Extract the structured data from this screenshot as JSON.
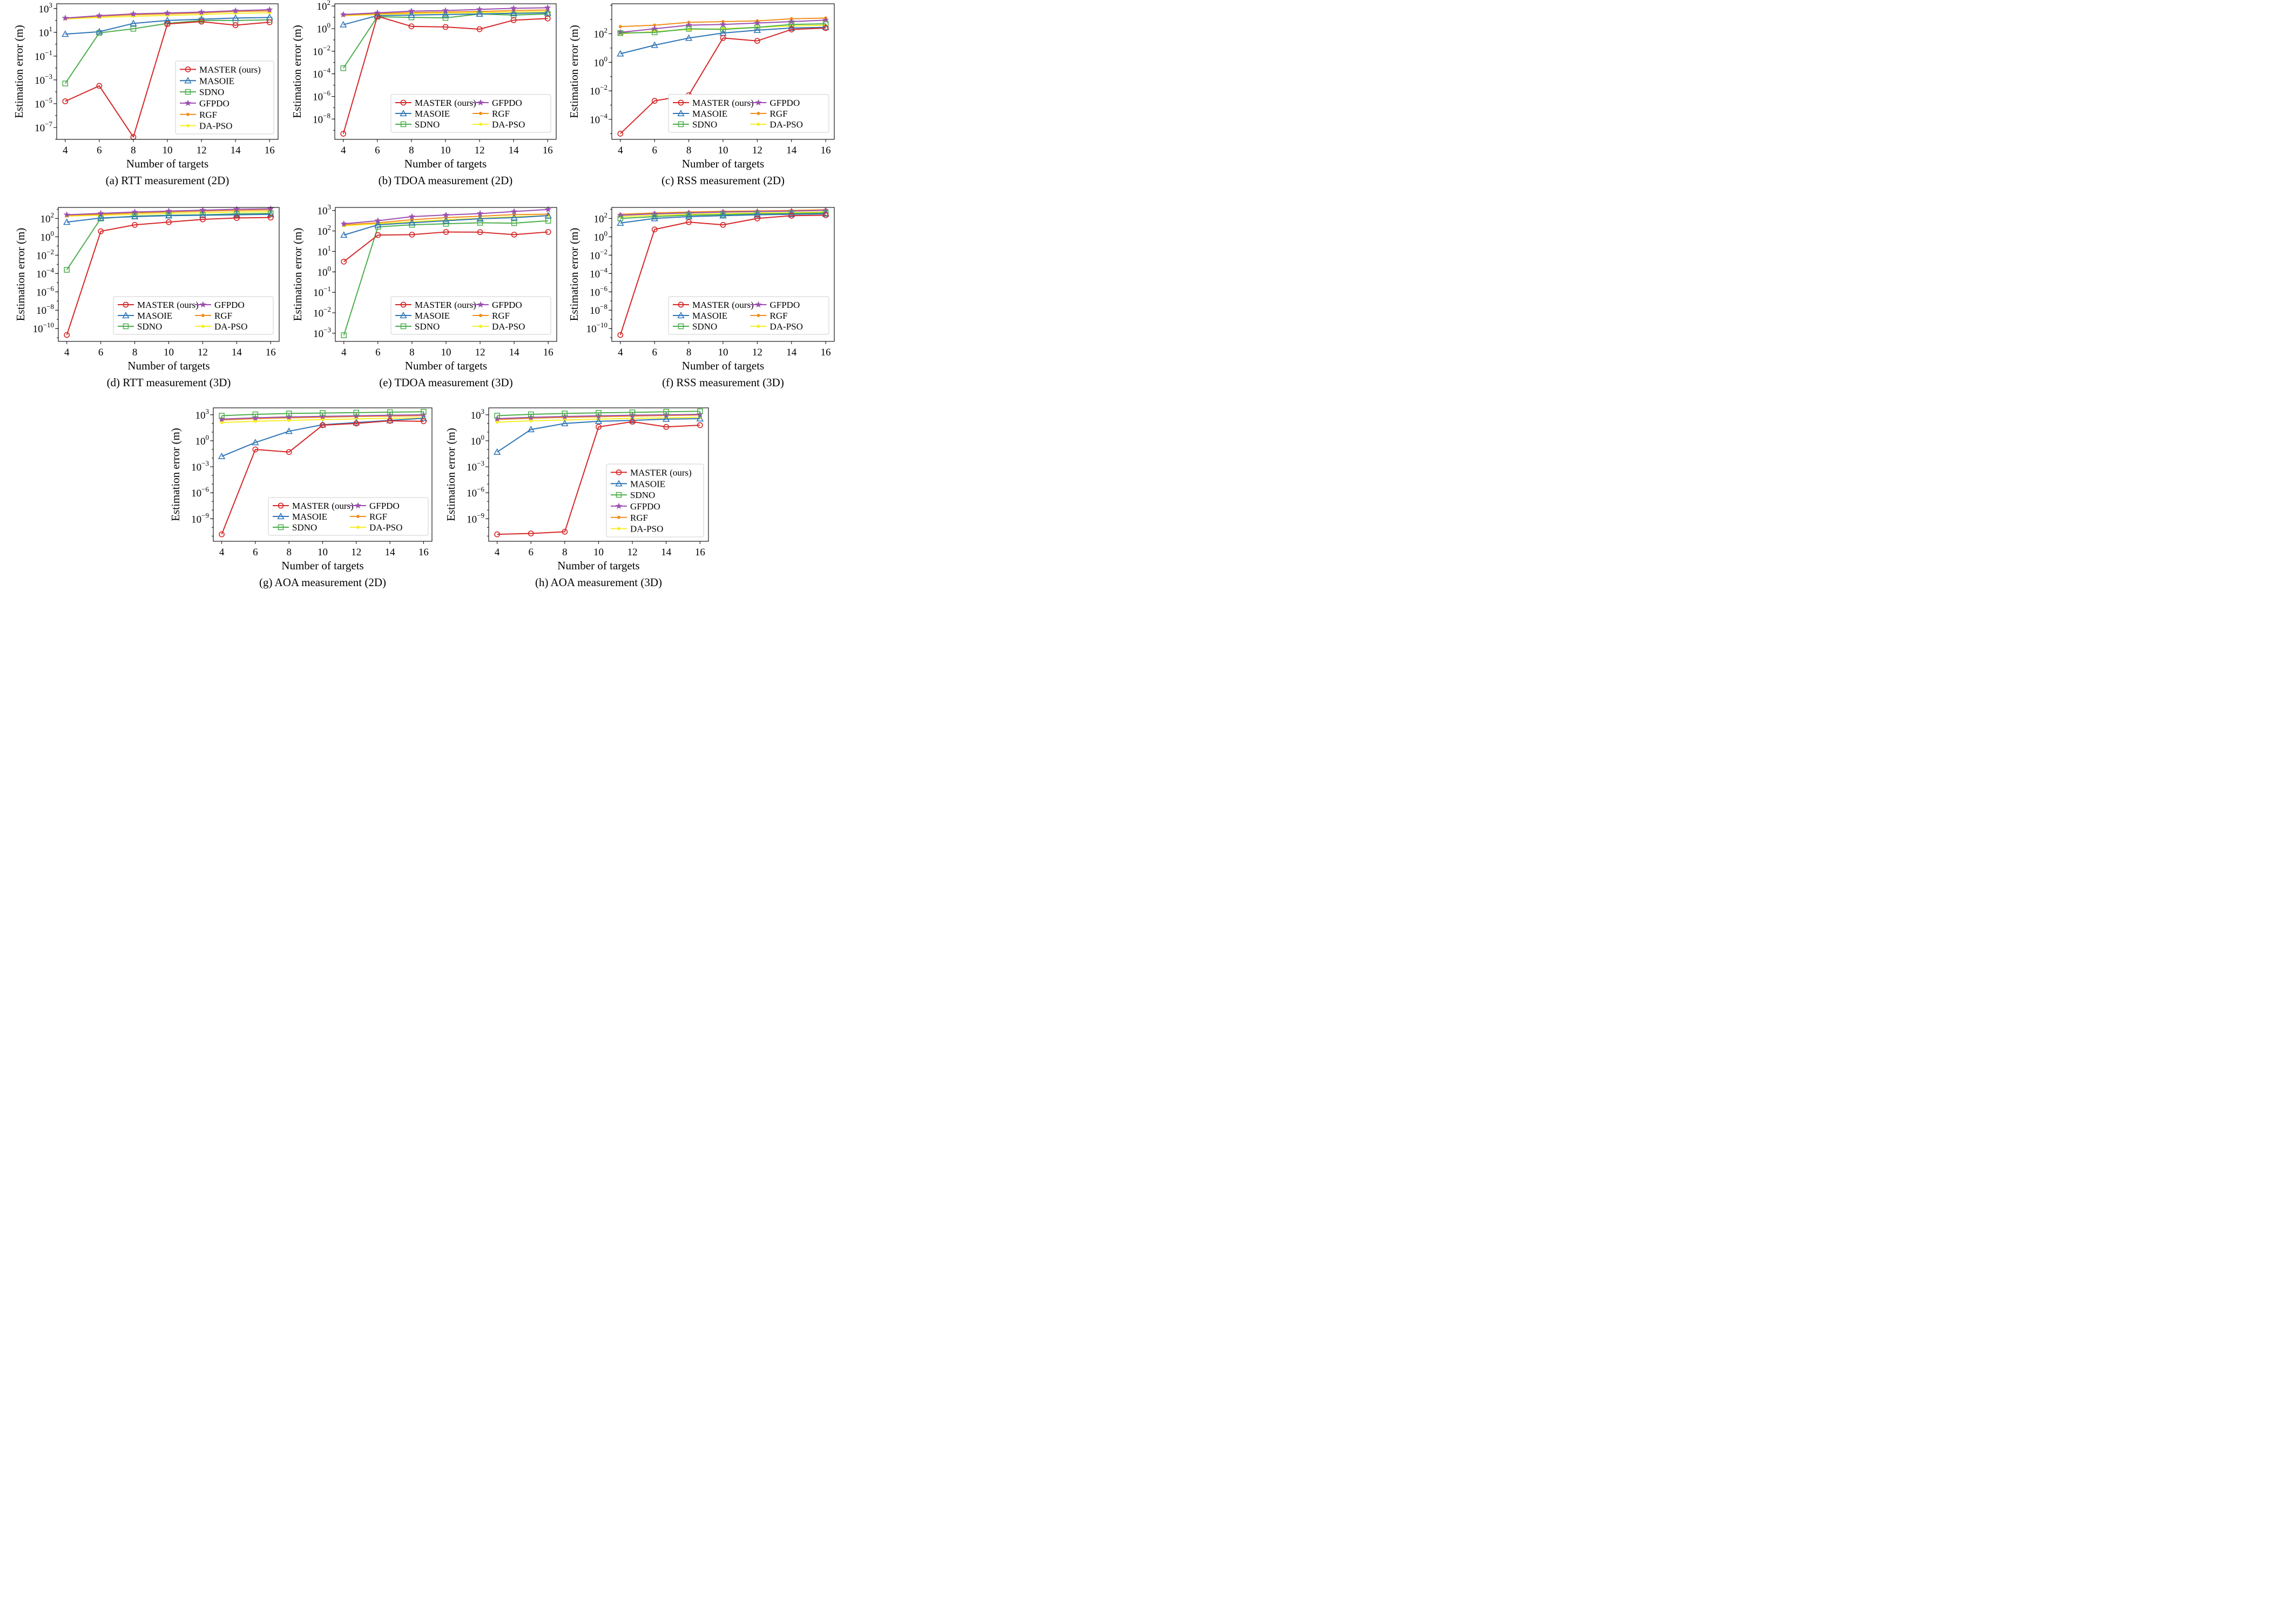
{
  "series_styles": [
    {
      "name": "MASTER (ours)",
      "color": "#d62728",
      "marker": "circle"
    },
    {
      "name": "MASOIE",
      "color": "#2e75b6",
      "marker": "triangle"
    },
    {
      "name": "SDNO",
      "color": "#4cae4c",
      "marker": "square"
    },
    {
      "name": "GFPDO",
      "color": "#9b4fb0",
      "marker": "star"
    },
    {
      "name": "RGF",
      "color": "#f28e1c",
      "marker": "dot"
    },
    {
      "name": "DA-PSO",
      "color": "#f5ef2a",
      "marker": "dot"
    }
  ],
  "chart_data": [
    {
      "type": "line",
      "caption": "(a) RTT measurement (2D)",
      "xlabel": "Number of targets",
      "ylabel": "Estimation error (m)",
      "yscale": "log",
      "ylim_exp": [
        -8,
        3.4
      ],
      "yticks_exp": [
        -7,
        -5,
        -3,
        -1,
        1,
        3
      ],
      "xlim": [
        3.5,
        16.5
      ],
      "xticks": [
        4,
        6,
        8,
        10,
        12,
        14,
        16
      ],
      "legend": {
        "placement": "lower-right",
        "columns": 1
      },
      "x": [
        4,
        6,
        8,
        10,
        12,
        14,
        16
      ],
      "series": [
        {
          "name": "MASTER (ours)",
          "values_log10": [
            -4.8,
            -3.5,
            -7.8,
            1.7,
            1.9,
            1.6,
            1.85
          ]
        },
        {
          "name": "MASOIE",
          "values_log10": [
            0.85,
            1.05,
            1.75,
            2.0,
            2.1,
            2.2,
            2.25
          ]
        },
        {
          "name": "SDNO",
          "values_log10": [
            -3.3,
            0.95,
            1.3,
            1.75,
            2.0,
            2.0,
            2.05
          ]
        },
        {
          "name": "GFPDO",
          "values_log10": [
            2.2,
            2.4,
            2.55,
            2.62,
            2.7,
            2.82,
            2.9
          ]
        },
        {
          "name": "RGF",
          "values_log10": [
            2.18,
            2.35,
            2.48,
            2.55,
            2.63,
            2.75,
            2.8
          ]
        },
        {
          "name": "DA-PSO",
          "values_log10": [
            2.12,
            2.25,
            2.35,
            2.42,
            2.5,
            2.6,
            2.65
          ]
        }
      ]
    },
    {
      "type": "line",
      "caption": "(b) TDOA measurement (2D)",
      "xlabel": "Number of targets",
      "ylabel": "Estimation error (m)",
      "yscale": "log",
      "ylim_exp": [
        -9.8,
        2.2
      ],
      "yticks_exp": [
        -8,
        -6,
        -4,
        -2,
        0,
        2
      ],
      "xlim": [
        3.5,
        16.5
      ],
      "xticks": [
        4,
        6,
        8,
        10,
        12,
        14,
        16
      ],
      "legend": {
        "placement": "lower-right",
        "columns": 2
      },
      "x": [
        4,
        6,
        8,
        10,
        12,
        14,
        16
      ],
      "series": [
        {
          "name": "MASTER (ours)",
          "values_log10": [
            -9.3,
            1.1,
            0.2,
            0.15,
            -0.05,
            0.75,
            0.9
          ]
        },
        {
          "name": "MASOIE",
          "values_log10": [
            0.35,
            1.15,
            1.2,
            1.25,
            1.3,
            1.35,
            1.4
          ]
        },
        {
          "name": "SDNO",
          "values_log10": [
            -3.5,
            1.05,
            1.0,
            0.95,
            1.3,
            1.2,
            1.3
          ]
        },
        {
          "name": "GFPDO",
          "values_log10": [
            1.25,
            1.4,
            1.55,
            1.6,
            1.7,
            1.8,
            1.85
          ]
        },
        {
          "name": "RGF",
          "values_log10": [
            1.2,
            1.32,
            1.42,
            1.47,
            1.52,
            1.6,
            1.65
          ]
        },
        {
          "name": "DA-PSO",
          "values_log10": [
            1.15,
            1.25,
            1.33,
            1.38,
            1.42,
            1.47,
            1.5
          ]
        }
      ]
    },
    {
      "type": "line",
      "caption": "(c) RSS measurement (2D)",
      "xlabel": "Number of targets",
      "ylabel": "Estimation error (m)",
      "yscale": "log",
      "ylim_exp": [
        -5.4,
        4.1
      ],
      "yticks_exp": [
        -4,
        -2,
        0,
        2
      ],
      "xlim": [
        3.5,
        16.5
      ],
      "xticks": [
        4,
        6,
        8,
        10,
        12,
        14,
        16
      ],
      "legend": {
        "placement": "lower-right",
        "columns": 2
      },
      "x": [
        4,
        6,
        8,
        10,
        12,
        14,
        16
      ],
      "series": [
        {
          "name": "MASTER (ours)",
          "values_log10": [
            -5.0,
            -2.7,
            -2.3,
            1.7,
            1.5,
            2.3,
            2.4
          ]
        },
        {
          "name": "MASOIE",
          "values_log10": [
            0.6,
            1.2,
            1.7,
            2.05,
            2.25,
            2.4,
            2.45
          ]
        },
        {
          "name": "SDNO",
          "values_log10": [
            2.05,
            2.1,
            2.35,
            2.3,
            2.45,
            2.65,
            2.7
          ]
        },
        {
          "name": "GFPDO",
          "values_log10": [
            2.1,
            2.35,
            2.6,
            2.65,
            2.75,
            2.85,
            2.95
          ]
        },
        {
          "name": "RGF",
          "values_log10": [
            2.5,
            2.6,
            2.8,
            2.85,
            2.9,
            3.05,
            3.1
          ]
        },
        {
          "name": "DA-PSO",
          "values_log10": [
            2.0,
            2.15,
            2.3,
            2.35,
            2.45,
            2.55,
            2.6
          ]
        }
      ]
    },
    {
      "type": "line",
      "caption": "(d) RTT measurement (3D)",
      "xlabel": "Number of targets",
      "ylabel": "Estimation error (m)",
      "yscale": "log",
      "ylim_exp": [
        -11.4,
        3.2
      ],
      "yticks_exp": [
        -10,
        -8,
        -6,
        -4,
        -2,
        0,
        2
      ],
      "xlim": [
        3.5,
        16.5
      ],
      "xticks": [
        4,
        6,
        8,
        10,
        12,
        14,
        16
      ],
      "legend": {
        "placement": "lower-right",
        "columns": 2
      },
      "x": [
        4,
        6,
        8,
        10,
        12,
        14,
        16
      ],
      "series": [
        {
          "name": "MASTER (ours)",
          "values_log10": [
            -10.7,
            0.6,
            1.3,
            1.6,
            1.9,
            2.05,
            2.1
          ]
        },
        {
          "name": "MASOIE",
          "values_log10": [
            1.6,
            2.05,
            2.2,
            2.3,
            2.35,
            2.4,
            2.45
          ]
        },
        {
          "name": "SDNO",
          "values_log10": [
            -3.6,
            2.0,
            2.25,
            2.35,
            2.4,
            2.5,
            2.55
          ]
        },
        {
          "name": "GFPDO",
          "values_log10": [
            2.4,
            2.55,
            2.7,
            2.8,
            2.9,
            3.0,
            3.05
          ]
        },
        {
          "name": "RGF",
          "values_log10": [
            2.35,
            2.45,
            2.6,
            2.7,
            2.8,
            2.88,
            2.93
          ]
        },
        {
          "name": "DA-PSO",
          "values_log10": [
            2.25,
            2.35,
            2.45,
            2.55,
            2.62,
            2.7,
            2.75
          ]
        }
      ]
    },
    {
      "type": "line",
      "caption": "(e) TDOA measurement (3D)",
      "xlabel": "Number of targets",
      "ylabel": "Estimation error (m)",
      "yscale": "log",
      "ylim_exp": [
        -3.4,
        3.15
      ],
      "yticks_exp": [
        -3,
        -2,
        -1,
        0,
        1,
        2,
        3
      ],
      "xlim": [
        3.5,
        16.5
      ],
      "xticks": [
        4,
        6,
        8,
        10,
        12,
        14,
        16
      ],
      "legend": {
        "placement": "lower-right",
        "columns": 2
      },
      "x": [
        4,
        6,
        8,
        10,
        12,
        14,
        16
      ],
      "series": [
        {
          "name": "MASTER (ours)",
          "values_log10": [
            0.5,
            1.8,
            1.82,
            1.95,
            1.94,
            1.82,
            1.95
          ]
        },
        {
          "name": "MASOIE",
          "values_log10": [
            1.8,
            2.3,
            2.4,
            2.5,
            2.6,
            2.65,
            2.75
          ]
        },
        {
          "name": "SDNO",
          "values_log10": [
            -3.1,
            2.2,
            2.3,
            2.35,
            2.4,
            2.38,
            2.5
          ]
        },
        {
          "name": "GFPDO",
          "values_log10": [
            2.35,
            2.5,
            2.7,
            2.78,
            2.85,
            2.95,
            3.05
          ]
        },
        {
          "name": "RGF",
          "values_log10": [
            2.3,
            2.4,
            2.55,
            2.65,
            2.72,
            2.8,
            2.82
          ]
        },
        {
          "name": "DA-PSO",
          "values_log10": [
            2.25,
            2.35,
            2.45,
            2.55,
            2.62,
            2.7,
            2.75
          ]
        }
      ]
    },
    {
      "type": "line",
      "caption": "(f) RSS measurement (3D)",
      "xlabel": "Number of targets",
      "ylabel": "Estimation error (m)",
      "yscale": "log",
      "ylim_exp": [
        -11.4,
        3.2
      ],
      "yticks_exp": [
        -10,
        -8,
        -6,
        -4,
        -2,
        0,
        2
      ],
      "xlim": [
        3.5,
        16.5
      ],
      "xticks": [
        4,
        6,
        8,
        10,
        12,
        14,
        16
      ],
      "legend": {
        "placement": "lower-right",
        "columns": 2
      },
      "x": [
        4,
        6,
        8,
        10,
        12,
        14,
        16
      ],
      "series": [
        {
          "name": "MASTER (ours)",
          "values_log10": [
            -10.7,
            0.8,
            1.6,
            1.3,
            2.0,
            2.3,
            2.35
          ]
        },
        {
          "name": "MASOIE",
          "values_log10": [
            1.5,
            2.0,
            2.2,
            2.3,
            2.4,
            2.45,
            2.5
          ]
        },
        {
          "name": "SDNO",
          "values_log10": [
            2.0,
            2.2,
            2.35,
            2.42,
            2.5,
            2.55,
            2.6
          ]
        },
        {
          "name": "GFPDO",
          "values_log10": [
            2.35,
            2.5,
            2.6,
            2.7,
            2.75,
            2.8,
            2.88
          ]
        },
        {
          "name": "RGF",
          "values_log10": [
            2.45,
            2.6,
            2.7,
            2.78,
            2.82,
            2.88,
            2.95
          ]
        },
        {
          "name": "DA-PSO",
          "values_log10": [
            2.2,
            2.35,
            2.45,
            2.55,
            2.6,
            2.65,
            2.7
          ]
        }
      ]
    },
    {
      "type": "line",
      "caption": "(g) AOA measurement (2D)",
      "xlabel": "Number of targets",
      "ylabel": "Estimation error (m)",
      "yscale": "log",
      "ylim_exp": [
        -11.6,
        3.8
      ],
      "yticks_exp": [
        -9,
        -6,
        -3,
        0,
        3
      ],
      "xlim": [
        3.5,
        16.5
      ],
      "xticks": [
        4,
        6,
        8,
        10,
        12,
        14,
        16
      ],
      "legend": {
        "placement": "lower-right",
        "columns": 2
      },
      "x": [
        4,
        6,
        8,
        10,
        12,
        14,
        16
      ],
      "series": [
        {
          "name": "MASTER (ours)",
          "values_log10": [
            -10.8,
            -1.0,
            -1.3,
            1.8,
            2.0,
            2.3,
            2.25
          ]
        },
        {
          "name": "MASOIE",
          "values_log10": [
            -1.8,
            -0.2,
            1.1,
            1.85,
            2.1,
            2.35,
            2.6
          ]
        },
        {
          "name": "SDNO",
          "values_log10": [
            2.9,
            3.05,
            3.15,
            3.2,
            3.25,
            3.3,
            3.35
          ]
        },
        {
          "name": "GFPDO",
          "values_log10": [
            2.5,
            2.65,
            2.75,
            2.82,
            2.88,
            2.95,
            3.0
          ]
        },
        {
          "name": "RGF",
          "values_log10": [
            2.4,
            2.55,
            2.65,
            2.72,
            2.8,
            2.85,
            2.9
          ]
        },
        {
          "name": "DA-PSO",
          "values_log10": [
            2.1,
            2.25,
            2.35,
            2.45,
            2.52,
            2.6,
            2.65
          ]
        }
      ]
    },
    {
      "type": "line",
      "caption": "(h) AOA measurement (3D)",
      "xlabel": "Number of targets",
      "ylabel": "Estimation error (m)",
      "yscale": "log",
      "ylim_exp": [
        -11.6,
        3.8
      ],
      "yticks_exp": [
        -9,
        -6,
        -3,
        0,
        3
      ],
      "xlim": [
        3.5,
        16.5
      ],
      "xticks": [
        4,
        6,
        8,
        10,
        12,
        14,
        16
      ],
      "legend": {
        "placement": "lower-right",
        "columns": 1
      },
      "x": [
        4,
        6,
        8,
        10,
        12,
        14,
        16
      ],
      "series": [
        {
          "name": "MASTER (ours)",
          "values_log10": [
            -10.8,
            -10.7,
            -10.5,
            1.6,
            2.2,
            1.6,
            1.8
          ]
        },
        {
          "name": "MASOIE",
          "values_log10": [
            -1.3,
            1.3,
            2.0,
            2.25,
            2.35,
            2.5,
            2.55
          ]
        },
        {
          "name": "SDNO",
          "values_log10": [
            2.9,
            3.05,
            3.15,
            3.22,
            3.28,
            3.35,
            3.4
          ]
        },
        {
          "name": "GFPDO",
          "values_log10": [
            2.55,
            2.7,
            2.8,
            2.88,
            2.95,
            3.0,
            3.05
          ]
        },
        {
          "name": "RGF",
          "values_log10": [
            2.45,
            2.6,
            2.7,
            2.78,
            2.85,
            2.92,
            2.97
          ]
        },
        {
          "name": "DA-PSO",
          "values_log10": [
            2.15,
            2.3,
            2.4,
            2.5,
            2.58,
            2.65,
            2.7
          ]
        }
      ]
    }
  ]
}
